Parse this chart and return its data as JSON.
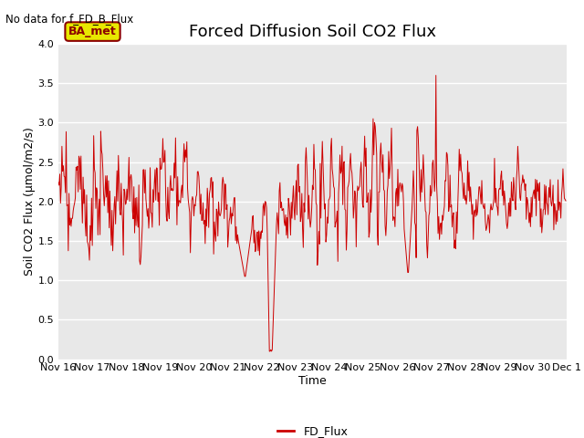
{
  "title": "Forced Diffusion Soil CO2 Flux",
  "xlabel": "Time",
  "ylabel": "Soil CO2 Flux (μmol/m2/s)",
  "no_data_text": "No data for f_FD_B_Flux",
  "legend_label": "FD_Flux",
  "legend_box_label": "BA_met",
  "ylim": [
    0.0,
    4.0
  ],
  "yticks": [
    0.0,
    0.5,
    1.0,
    1.5,
    2.0,
    2.5,
    3.0,
    3.5,
    4.0
  ],
  "line_color": "#cc0000",
  "legend_box_facecolor": "#e8e800",
  "legend_box_edgecolor": "#8B0000",
  "background_color": "#e8e8e8",
  "grid_color": "white",
  "title_fontsize": 13,
  "label_fontsize": 9,
  "tick_fontsize": 8,
  "figsize": [
    6.4,
    4.8
  ],
  "dpi": 100
}
